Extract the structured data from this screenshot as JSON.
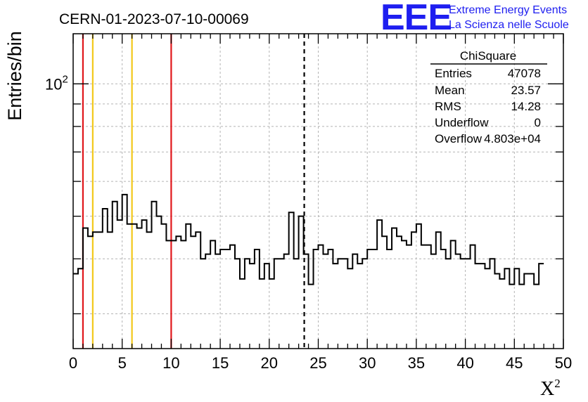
{
  "header": {
    "run_title": "CERN-01-2023-07-10-00069",
    "logo_letters": "EEE",
    "logo_line1": "Extreme Energy Events",
    "logo_line2": "La Scienza nelle Scuole"
  },
  "stats_box": {
    "title": "ChiSquare",
    "rows": [
      {
        "label": "Entries",
        "value": "47078"
      },
      {
        "label": "Mean",
        "value": "23.57"
      },
      {
        "label": "RMS",
        "value": "14.28"
      },
      {
        "label": "Underflow",
        "value": "0"
      },
      {
        "label": "Overflow",
        "value": "4.803e+04"
      }
    ]
  },
  "chart_data": {
    "type": "histogram",
    "xlabel": "X",
    "xlabel_sup": "2",
    "ylabel": "Entries/bin",
    "xlim": [
      0,
      50
    ],
    "ylim": [
      25,
      130
    ],
    "yscale": "log",
    "grid": true,
    "x_ticks": [
      0,
      5,
      10,
      15,
      20,
      25,
      30,
      35,
      40,
      45,
      50
    ],
    "y_ticks": [
      {
        "value": 100,
        "label": "10",
        "sup": "2"
      }
    ],
    "bin_width": 0.5,
    "bin_start": 0,
    "values": [
      37,
      38,
      47,
      45,
      46,
      46,
      52,
      46,
      54,
      49,
      56,
      48,
      48,
      47,
      49,
      46,
      54,
      50,
      48,
      44,
      44,
      45,
      44,
      48,
      45,
      46,
      40,
      41,
      44,
      41,
      42,
      42,
      43,
      40,
      36,
      40,
      39,
      42,
      36,
      39,
      36,
      40,
      40,
      41,
      51,
      40,
      50,
      41,
      35,
      42,
      43,
      41,
      42,
      39,
      40,
      40,
      38,
      41,
      39,
      40,
      42,
      42,
      49,
      45,
      42,
      47,
      45,
      44,
      43,
      46,
      48,
      43,
      43,
      41,
      46,
      42,
      40,
      44,
      41,
      40,
      40,
      43,
      39,
      39,
      38,
      40,
      37,
      36,
      38,
      35,
      38,
      35,
      37,
      37,
      35,
      39
    ],
    "vertical_lines": [
      {
        "x": 1,
        "color": "#e0161b",
        "style": "solid"
      },
      {
        "x": 2,
        "color": "#f2c81a",
        "style": "solid"
      },
      {
        "x": 6,
        "color": "#f2c81a",
        "style": "solid"
      },
      {
        "x": 10,
        "color": "#e0161b",
        "style": "solid"
      },
      {
        "x": 23.57,
        "color": "#000000",
        "style": "dashed"
      }
    ]
  }
}
